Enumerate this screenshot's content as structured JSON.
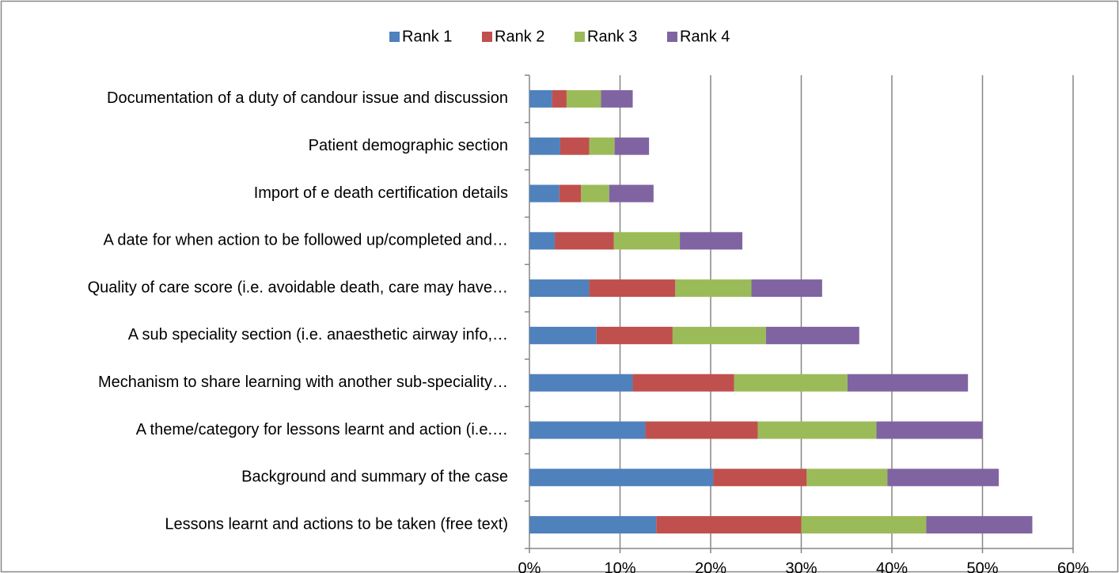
{
  "chart_data": {
    "type": "stacked-barh",
    "categories": [
      "Documentation of a duty of candour issue and discussion",
      "Patient demographic section",
      "Import of e death certification details",
      "A date for when action to be followed up/completed and…",
      "Quality of care score (i.e. avoidable death, care may have…",
      "A sub speciality section (i.e. anaesthetic airway info,…",
      "Mechanism to share learning with another sub-speciality…",
      "A theme/category for lessons learnt and action (i.e.…",
      "Background and summary of the case",
      "Lessons learnt and actions to be taken (free text)"
    ],
    "series": [
      {
        "name": "Rank 1",
        "color": "#4f81bd",
        "values": [
          2.5,
          3.4,
          3.3,
          2.8,
          6.6,
          7.4,
          11.4,
          12.8,
          20.3,
          14.0
        ]
      },
      {
        "name": "Rank 2",
        "color": "#c0504d",
        "values": [
          1.6,
          3.2,
          2.4,
          6.5,
          9.5,
          8.4,
          11.2,
          12.4,
          10.3,
          16.0
        ]
      },
      {
        "name": "Rank 3",
        "color": "#9bbb59",
        "values": [
          3.8,
          2.8,
          3.1,
          7.3,
          8.4,
          10.3,
          12.5,
          13.1,
          8.9,
          13.8
        ]
      },
      {
        "name": "Rank 4",
        "color": "#8064a2",
        "values": [
          3.5,
          3.8,
          4.9,
          6.9,
          7.8,
          10.3,
          13.3,
          11.7,
          12.3,
          11.7
        ]
      }
    ],
    "xlim": [
      0,
      60
    ],
    "xticks": [
      {
        "value": 0,
        "label": "0%"
      },
      {
        "value": 10,
        "label": "10%"
      },
      {
        "value": 20,
        "label": "20%"
      },
      {
        "value": 30,
        "label": "30%"
      },
      {
        "value": 40,
        "label": "40%"
      },
      {
        "value": 50,
        "label": "50%"
      },
      {
        "value": 60,
        "label": "60%"
      }
    ],
    "grid": true,
    "legend": "top"
  }
}
